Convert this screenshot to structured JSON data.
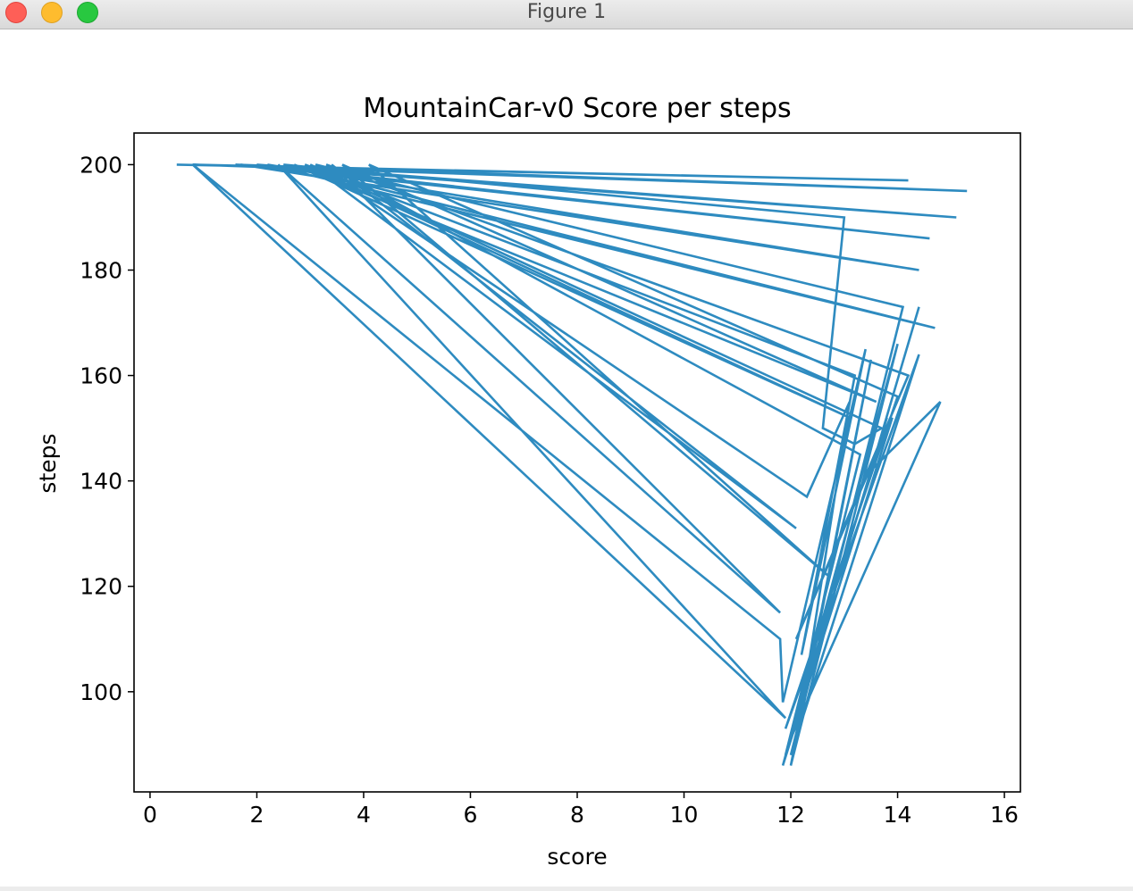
{
  "window": {
    "title": "Figure 1"
  },
  "colors": {
    "line": "#2e8bc0",
    "axes": "#000000",
    "background": "#ffffff"
  },
  "chart_data": {
    "type": "line",
    "title": "MountainCar-v0 Score per steps",
    "xlabel": "score",
    "ylabel": "steps",
    "xlim": [
      -0.3,
      16.3
    ],
    "ylim": [
      81,
      206
    ],
    "xticks": [
      0,
      2,
      4,
      6,
      8,
      10,
      12,
      14,
      16
    ],
    "yticks": [
      100,
      120,
      140,
      160,
      180,
      200
    ],
    "grid": false,
    "legend": "none",
    "series": [
      {
        "x": [
          0.5,
          14.2,
          0.8,
          15.3,
          1.6,
          15.1,
          2.0,
          14.6,
          1.7,
          14.4,
          2.2,
          14.7,
          2.5,
          13.0,
          12.6,
          13.2,
          13.7,
          3.0,
          12.1,
          3.4,
          11.8,
          2.4,
          11.9,
          0.8,
          11.8,
          11.85,
          13.4,
          12.2,
          13.2,
          2.9,
          13.1,
          2.7,
          13.6,
          3.6,
          12.7,
          4.1,
          14.0,
          11.9,
          14.4,
          12.0,
          14.1,
          3.1,
          12.3,
          13.1,
          12.1,
          13.5,
          12.0,
          14.0,
          11.85,
          13.9,
          12.1,
          14.2,
          3.3,
          13.3,
          11.9,
          13.8,
          11.95,
          14.8,
          13.5,
          14.4
        ],
        "y": [
          200,
          197,
          200,
          195,
          200,
          190,
          200,
          186,
          200,
          180,
          200,
          169,
          200,
          190,
          150,
          147,
          150,
          200,
          131,
          200,
          115,
          200,
          95,
          200,
          110,
          98,
          165,
          107,
          160,
          200,
          152,
          200,
          155,
          200,
          122,
          200,
          156,
          93,
          164,
          88,
          173,
          200,
          137,
          155,
          90,
          163,
          86,
          166,
          86,
          152,
          110,
          160,
          200,
          145,
          88,
          152,
          90,
          155,
          142,
          173
        ]
      }
    ]
  }
}
